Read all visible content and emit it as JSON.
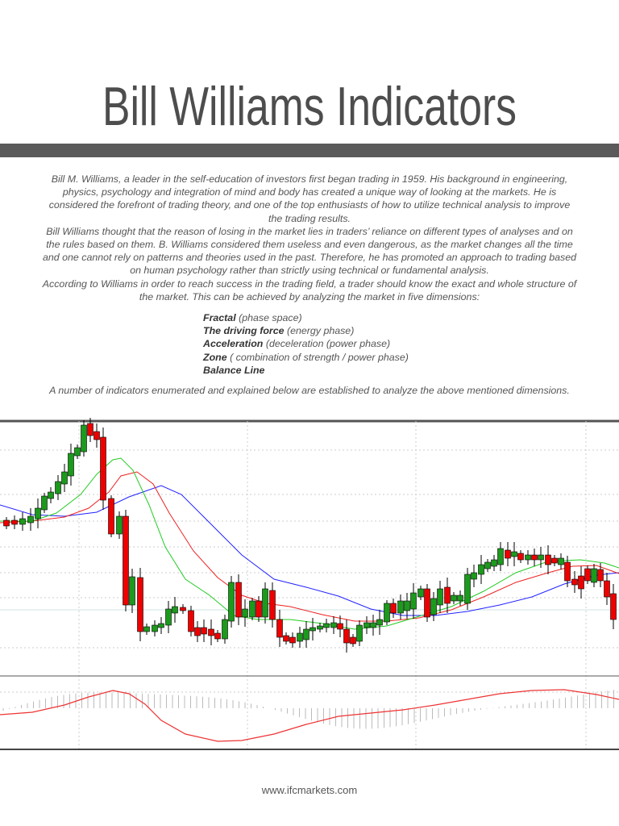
{
  "header": {
    "title": "Bill Williams Indicators"
  },
  "body": {
    "paragraphs": [
      "Bill M. Williams, a leader in the self-education of investors first began trading in 1959. His background in engineering, physics, psychology and integration of mind and body has created a unique way of looking at the markets. He is considered the forefront of trading theory, and one of the top enthusiasts of how to utilize technical analysis to improve the trading results.",
      "Bill Williams thought that the reason of losing in the market lies in traders’ reliance on different types of analyses and on the rules based on them. B. Williams considered them useless and even dangerous, as the market changes all the time and one cannot rely on patterns and theories used in the past. Therefore, he has promoted an approach to trading based on human psychology rather than strictly using technical or fundamental analysis.",
      "According to Williams in order to reach success in the trading field, a trader should know the exact and whole structure of the market. This can be achieved by analyzing the market in five dimensions:"
    ],
    "list": [
      {
        "term": "Fractal",
        "desc": "(phase space)"
      },
      {
        "term": "The driving force",
        "desc": "(energy phase)"
      },
      {
        "term": "Acceleration",
        "desc": "(deceleration (power phase)"
      },
      {
        "term": "Zone",
        "desc": "( combination of strength / power phase)"
      },
      {
        "term": "Balance Line"
      }
    ],
    "closing": "A number of indicators enumerated and explained below are established to analyze the above mentioned dimensions."
  },
  "footer": {
    "url": "www.ifcmarkets.com"
  }
}
